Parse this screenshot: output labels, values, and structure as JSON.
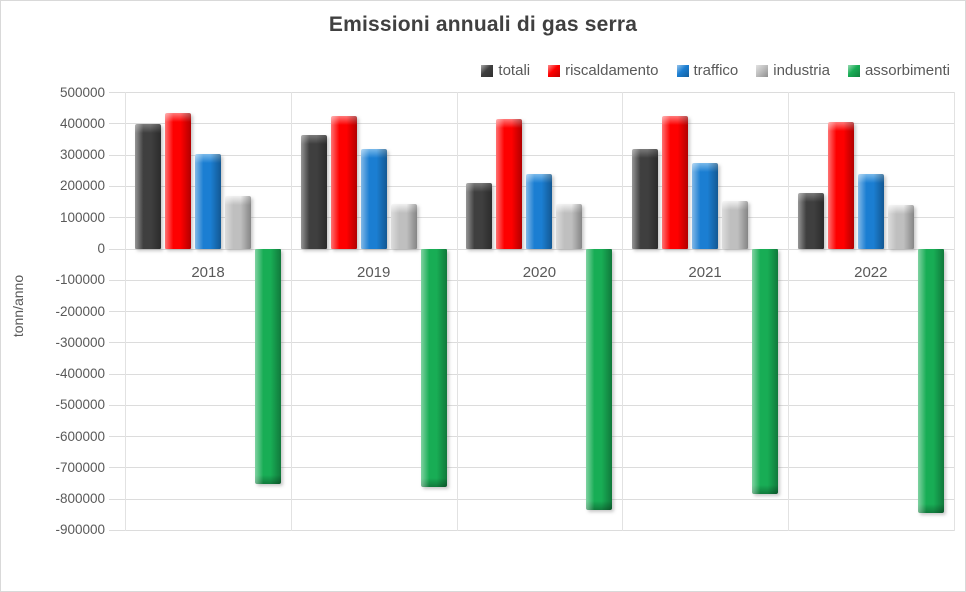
{
  "chart_data": {
    "type": "bar",
    "title": "Emissioni annuali di gas serra",
    "ylabel": "tonn/anno",
    "xlabel": "",
    "categories": [
      "2018",
      "2019",
      "2020",
      "2021",
      "2022"
    ],
    "series": [
      {
        "name": "totali",
        "color": "#3f3f3f",
        "highlight": "#7a7a7a",
        "values": [
          400000,
          365000,
          210000,
          320000,
          180000
        ]
      },
      {
        "name": "riscaldamento",
        "color": "#fe0000",
        "highlight": "#ff7a7a",
        "values": [
          435000,
          425000,
          415000,
          425000,
          405000
        ]
      },
      {
        "name": "traffico",
        "color": "#1b7ed2",
        "highlight": "#79b9ea",
        "values": [
          305000,
          320000,
          240000,
          275000,
          240000
        ]
      },
      {
        "name": "industria",
        "color": "#bfbfbf",
        "highlight": "#f0f0f0",
        "values": [
          170000,
          145000,
          145000,
          155000,
          140000
        ]
      },
      {
        "name": "assorbimenti",
        "color": "#18ad55",
        "highlight": "#63d694",
        "values": [
          -750000,
          -760000,
          -835000,
          -785000,
          -845000
        ]
      }
    ],
    "ylim": [
      -900000,
      500000
    ],
    "yticks": [
      500000,
      400000,
      300000,
      200000,
      100000,
      0,
      -100000,
      -200000,
      -300000,
      -400000,
      -500000,
      -600000,
      -700000,
      -800000,
      -900000
    ],
    "grid": true,
    "legend_position": "top-right",
    "colors": {
      "text": "#595959",
      "title": "#404040",
      "gridline": "#dcdcdc",
      "background": "#ffffff"
    }
  }
}
